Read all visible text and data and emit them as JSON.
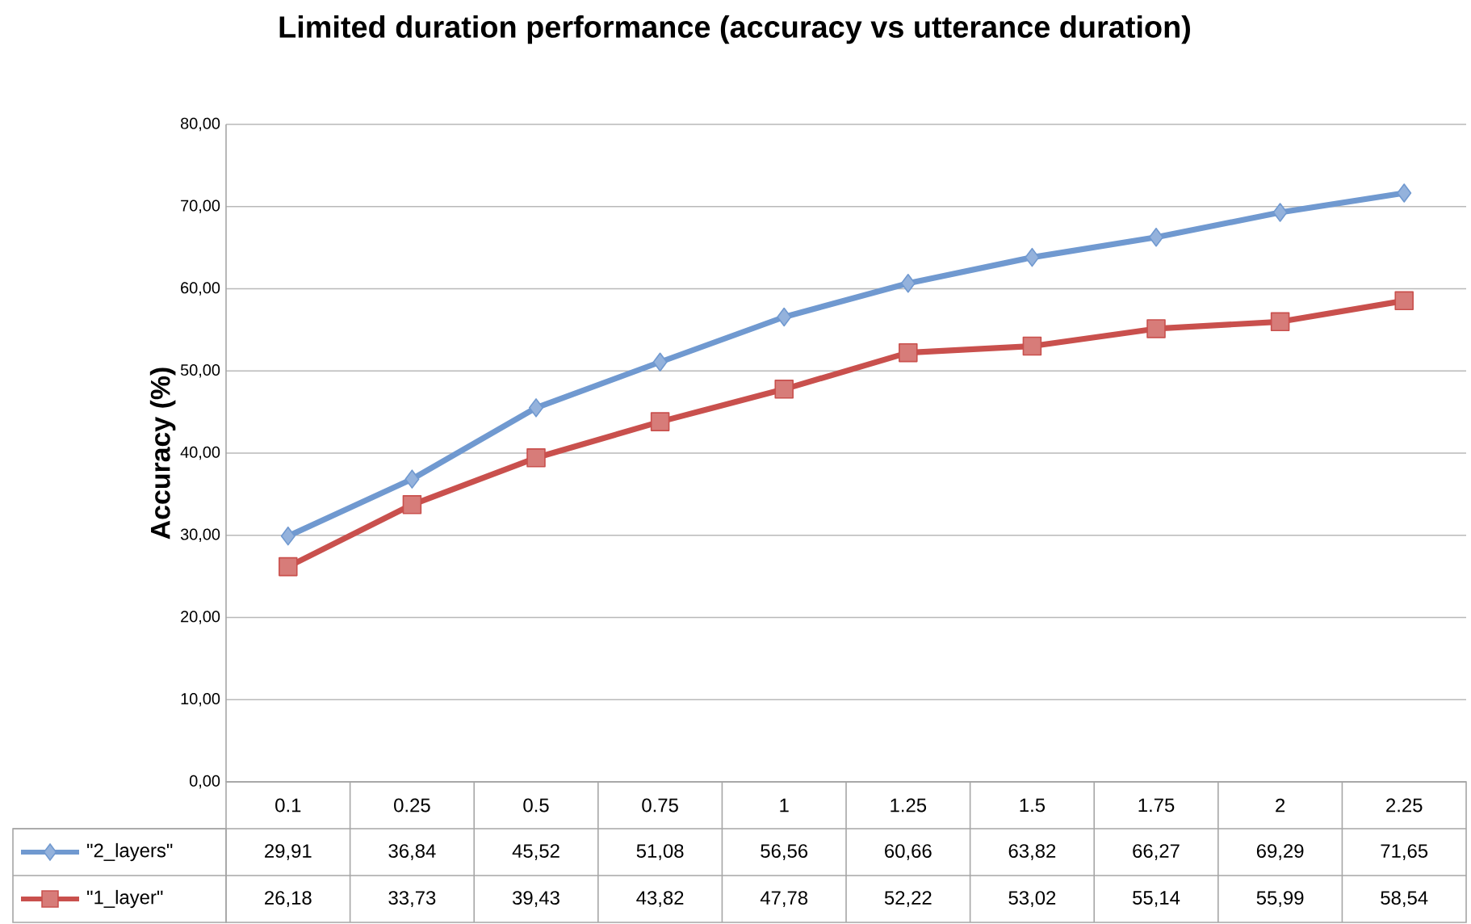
{
  "chart_data": {
    "type": "line",
    "title": "Limited duration performance (accuracy vs utterance duration)",
    "ylabel": "Accuracy (%)",
    "categories": [
      "0.1",
      "0.25",
      "0.5",
      "0.75",
      "1",
      "1.25",
      "1.5",
      "1.75",
      "2",
      "2.25"
    ],
    "series": [
      {
        "name": "\"2_layers\"",
        "color": "#7099d0",
        "marker": "diamond",
        "values": [
          29.91,
          36.84,
          45.52,
          51.08,
          56.56,
          60.66,
          63.82,
          66.27,
          69.29,
          71.65
        ],
        "value_labels": [
          "29,91",
          "36,84",
          "45,52",
          "51,08",
          "56,56",
          "60,66",
          "63,82",
          "66,27",
          "69,29",
          "71,65"
        ]
      },
      {
        "name": "\"1_layer\"",
        "color": "#c9504d",
        "marker": "square",
        "values": [
          26.18,
          33.73,
          39.43,
          43.82,
          47.78,
          52.22,
          53.02,
          55.14,
          55.99,
          58.54
        ],
        "value_labels": [
          "26,18",
          "33,73",
          "39,43",
          "43,82",
          "47,78",
          "52,22",
          "53,02",
          "55,14",
          "55,99",
          "58,54"
        ]
      }
    ],
    "ylim": [
      0,
      80
    ],
    "yticks": [
      {
        "value": 0,
        "label": "0,00"
      },
      {
        "value": 10,
        "label": "10,00"
      },
      {
        "value": 20,
        "label": "20,00"
      },
      {
        "value": 30,
        "label": "30,00"
      },
      {
        "value": 40,
        "label": "40,00"
      },
      {
        "value": 50,
        "label": "50,00"
      },
      {
        "value": 60,
        "label": "60,00"
      },
      {
        "value": 70,
        "label": "70,00"
      },
      {
        "value": 80,
        "label": "80,00"
      }
    ],
    "grid": "y",
    "legend": "bottom",
    "line_style": "solid"
  }
}
